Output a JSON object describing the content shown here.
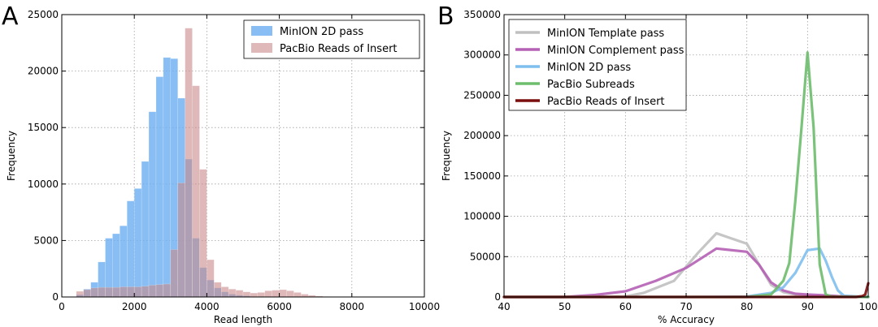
{
  "chart_data": [
    {
      "panel": "A",
      "type": "bar",
      "xlabel": "Read length",
      "ylabel": "Frequency",
      "xlim": [
        0,
        10000
      ],
      "ylim": [
        0,
        25000
      ],
      "xticks": [
        0,
        2000,
        4000,
        6000,
        8000,
        10000
      ],
      "yticks": [
        0,
        5000,
        10000,
        15000,
        20000,
        25000
      ],
      "grid": true,
      "legend_position": "top-right",
      "bin_width": 200,
      "series": [
        {
          "name": "MinION 2D pass",
          "color": "#6aaef0",
          "bins": [
            [
              400,
              200
            ],
            [
              600,
              700
            ],
            [
              800,
              1300
            ],
            [
              1000,
              3100
            ],
            [
              1200,
              5200
            ],
            [
              1400,
              5600
            ],
            [
              1600,
              6300
            ],
            [
              1800,
              8500
            ],
            [
              2000,
              9600
            ],
            [
              2200,
              12000
            ],
            [
              2400,
              16400
            ],
            [
              2600,
              19500
            ],
            [
              2800,
              21200
            ],
            [
              3000,
              21100
            ],
            [
              3200,
              17600
            ],
            [
              3400,
              12200
            ],
            [
              3600,
              5200
            ],
            [
              3800,
              2600
            ],
            [
              4000,
              1500
            ],
            [
              4200,
              800
            ],
            [
              4400,
              450
            ],
            [
              4600,
              250
            ],
            [
              4800,
              150
            ],
            [
              5000,
              100
            ]
          ]
        },
        {
          "name": "PacBio Reads of Insert",
          "color": "#c98a8a",
          "bins": [
            [
              400,
              500
            ],
            [
              600,
              650
            ],
            [
              800,
              800
            ],
            [
              1000,
              850
            ],
            [
              1200,
              850
            ],
            [
              1400,
              850
            ],
            [
              1600,
              900
            ],
            [
              1800,
              900
            ],
            [
              2000,
              900
            ],
            [
              2200,
              950
            ],
            [
              2400,
              1050
            ],
            [
              2600,
              1100
            ],
            [
              2800,
              1150
            ],
            [
              3000,
              4200
            ],
            [
              3200,
              10100
            ],
            [
              3400,
              23800
            ],
            [
              3600,
              18700
            ],
            [
              3800,
              11300
            ],
            [
              4000,
              3300
            ],
            [
              4200,
              1300
            ],
            [
              4400,
              900
            ],
            [
              4600,
              700
            ],
            [
              4800,
              600
            ],
            [
              5000,
              450
            ],
            [
              5200,
              350
            ],
            [
              5400,
              400
            ],
            [
              5600,
              550
            ],
            [
              5800,
              600
            ],
            [
              6000,
              650
            ],
            [
              6200,
              550
            ],
            [
              6400,
              400
            ],
            [
              6600,
              250
            ],
            [
              6800,
              150
            ],
            [
              7000,
              80
            ],
            [
              7200,
              40
            ]
          ]
        }
      ]
    },
    {
      "panel": "B",
      "type": "line",
      "xlabel": "% Accuracy",
      "ylabel": "Frequency",
      "xlim": [
        40,
        100
      ],
      "ylim": [
        0,
        350000
      ],
      "xticks": [
        40,
        50,
        60,
        70,
        80,
        90,
        100
      ],
      "yticks": [
        0,
        50000,
        100000,
        150000,
        200000,
        250000,
        300000,
        350000
      ],
      "grid": true,
      "legend_position": "top-left",
      "series": [
        {
          "name": "MinION Template pass",
          "color": "#c0c0c0",
          "x": [
            40,
            50,
            60,
            63,
            68,
            72,
            75,
            80,
            84,
            86,
            88,
            90,
            92,
            95,
            100
          ],
          "y": [
            0,
            0,
            500,
            5000,
            20000,
            55000,
            79000,
            66000,
            15000,
            6000,
            3000,
            2000,
            1000,
            500,
            0
          ]
        },
        {
          "name": "MinION Complement pass",
          "color": "#b561b5",
          "x": [
            40,
            50,
            55,
            60,
            65,
            70,
            75,
            80,
            82,
            84,
            86,
            88,
            90,
            93,
            95,
            100
          ],
          "y": [
            0,
            0,
            2500,
            7000,
            20000,
            36000,
            60000,
            56000,
            40000,
            18000,
            8000,
            4000,
            3000,
            2000,
            1000,
            0
          ]
        },
        {
          "name": "MinION 2D pass",
          "color": "#7fbfee",
          "x": [
            40,
            70,
            80,
            84,
            86,
            88,
            90,
            92,
            93,
            94,
            95,
            96,
            100
          ],
          "y": [
            0,
            0,
            500,
            5000,
            12000,
            30000,
            58000,
            60000,
            45000,
            25000,
            8000,
            1500,
            0
          ]
        },
        {
          "name": "PacBio Subreads",
          "color": "#6dbd6d",
          "x": [
            40,
            80,
            84,
            86,
            87,
            88,
            89,
            90,
            91,
            92,
            93,
            94,
            100
          ],
          "y": [
            0,
            0,
            3000,
            20000,
            42000,
            120000,
            210000,
            303000,
            210000,
            40000,
            3000,
            500,
            0
          ]
        },
        {
          "name": "PacBio Reads of Insert",
          "color": "#7a0d0d",
          "x": [
            40,
            98,
            99,
            99.5,
            100
          ],
          "y": [
            0,
            0,
            1000,
            3000,
            17000
          ]
        }
      ]
    }
  ]
}
